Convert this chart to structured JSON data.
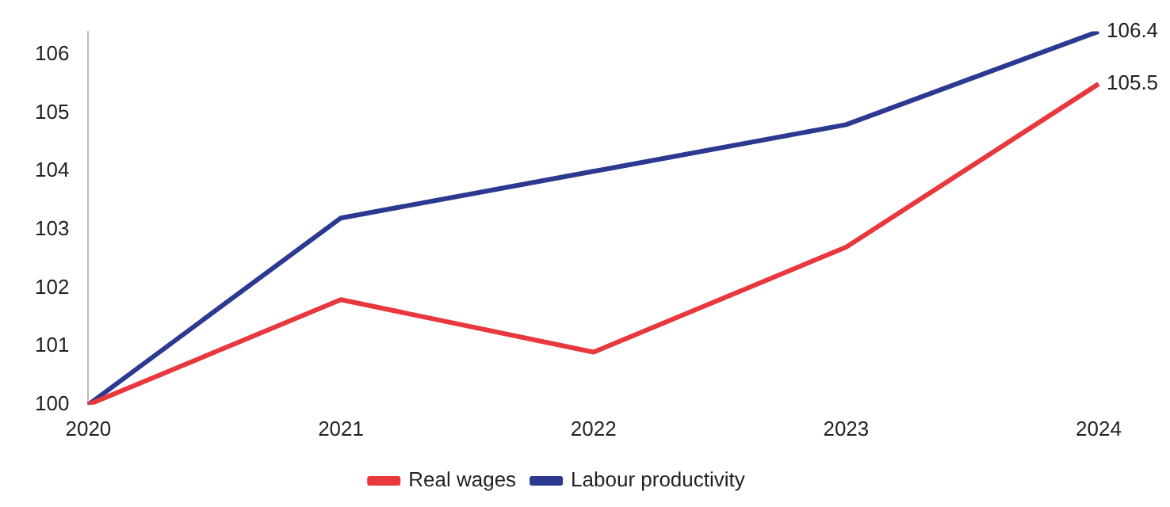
{
  "chart_data": {
    "type": "line",
    "categories": [
      "2020",
      "2021",
      "2022",
      "2023",
      "2024"
    ],
    "series": [
      {
        "name": "Real wages",
        "color": "#e8383d",
        "values": [
          100,
          101.8,
          100.9,
          102.7,
          105.5
        ],
        "value_labels": [
          null,
          null,
          null,
          null,
          "105.5"
        ]
      },
      {
        "name": "Labour productivity",
        "color": "#2b3990",
        "values": [
          100,
          103.2,
          104.0,
          104.8,
          106.4
        ],
        "value_labels": [
          null,
          null,
          null,
          null,
          "106.4"
        ]
      }
    ],
    "ylim": [
      100,
      106.4
    ],
    "yticks": [
      100,
      101,
      102,
      103,
      104,
      105,
      106
    ],
    "grid": false,
    "legend": "bottom",
    "marker": "none",
    "line_style": "solid"
  }
}
